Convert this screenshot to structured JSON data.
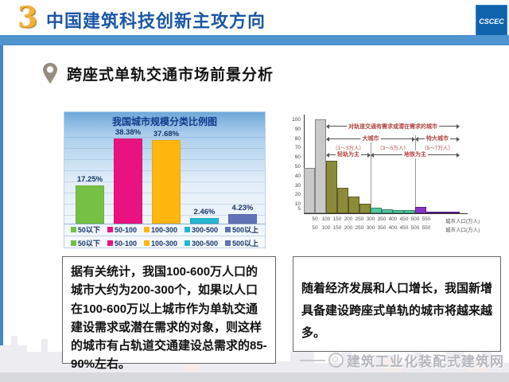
{
  "header": {
    "number": "3",
    "title": "中国建筑科技创新主攻方向",
    "logo_text": "CSCEC",
    "accent_blue": "#1b57a6",
    "bar_color": "#4f94cf"
  },
  "section": {
    "title": "跨座式单轨交通市场前景分析"
  },
  "chart_data": [
    {
      "type": "bar",
      "title": "我国城市规模分类比例图",
      "categories": [
        "50以下",
        "50-100",
        "100-300",
        "300-500",
        "500以上"
      ],
      "values": [
        17.25,
        38.38,
        37.68,
        2.46,
        4.23
      ],
      "value_labels": [
        "17.25%",
        "38.38%",
        "37.68%",
        "2.46%",
        "4.23%"
      ],
      "colors": [
        "#76c043",
        "#e81380",
        "#ffb60f",
        "#25b7d3",
        "#6272b6"
      ],
      "ylabel": "",
      "xlabel": "",
      "ylim": [
        0,
        42
      ],
      "grid": true,
      "legend_position": "bottom",
      "legend_rows": 2
    },
    {
      "type": "bar",
      "title": "",
      "xlabel": "城市人口(万人)",
      "x_ticks": [
        "50",
        "100",
        "150",
        "200",
        "250",
        "300",
        "350",
        "400",
        "450",
        "500",
        "550"
      ],
      "y_ticks": [
        100,
        90,
        80,
        70,
        60,
        50,
        40,
        30,
        20,
        10,
        5
      ],
      "bins": [
        "0-50",
        "50-100",
        "100-150",
        "150-200",
        "200-250",
        "250-300",
        "300-350",
        "350-400",
        "400-450",
        "450-500",
        "500-550",
        "550+"
      ],
      "values": [
        48,
        100,
        56,
        27,
        18,
        10,
        6,
        4,
        3,
        3,
        7,
        1.5
      ],
      "colors": [
        "#c9c9c9",
        "#c9c9c9",
        "#8b8b3a",
        "#8b8b3a",
        "#8b8b3a",
        "#8b8b3a",
        "#4fc9a0",
        "#4fc9a0",
        "#4fc9a0",
        "#4fc9a0",
        "#8833cc",
        "#7a2fbf"
      ],
      "ylim": [
        0,
        105
      ],
      "ref_lines": [
        300,
        500
      ],
      "annotations": [
        {
          "label": "对轨道交通有需求或潜在需求的城市",
          "from": 100,
          "to": 700,
          "y": 92,
          "kind": "arrow"
        },
        {
          "label": "大城市",
          "from": 100,
          "to": 500,
          "y": 79,
          "kind": "arrow"
        },
        {
          "label": "特大城市",
          "from": 500,
          "to": 700,
          "y": 79,
          "kind": "arrow"
        },
        {
          "label": "（1～3万人）",
          "from": 100,
          "to": 300,
          "y": 71,
          "kind": "text"
        },
        {
          "label": "（3～5万人）",
          "from": 300,
          "to": 500,
          "y": 71,
          "kind": "text"
        },
        {
          "label": "（5～7万人）",
          "from": 500,
          "to": 700,
          "y": 71,
          "kind": "text"
        },
        {
          "label": "轻轨为主",
          "from": 100,
          "to": 300,
          "y": 62,
          "kind": "arrow"
        },
        {
          "label": "地铁为主",
          "from": 300,
          "to": 700,
          "y": 62,
          "kind": "arrow"
        }
      ]
    }
  ],
  "notes": {
    "left": "据有关统计，我国100-600万人口的城市大约为200-300个，如果以人口在100-600万以上城市作为单轨交通建设需求或潜在需求的对象，则这样的城市有占轨道交通建设总需求的85-90%左右。",
    "right": "随着经济发展和人口增长，我国新增具备建设跨座式单轨的城市将越来越多。"
  },
  "watermark": {
    "text": "建筑工业化装配式建筑网"
  }
}
